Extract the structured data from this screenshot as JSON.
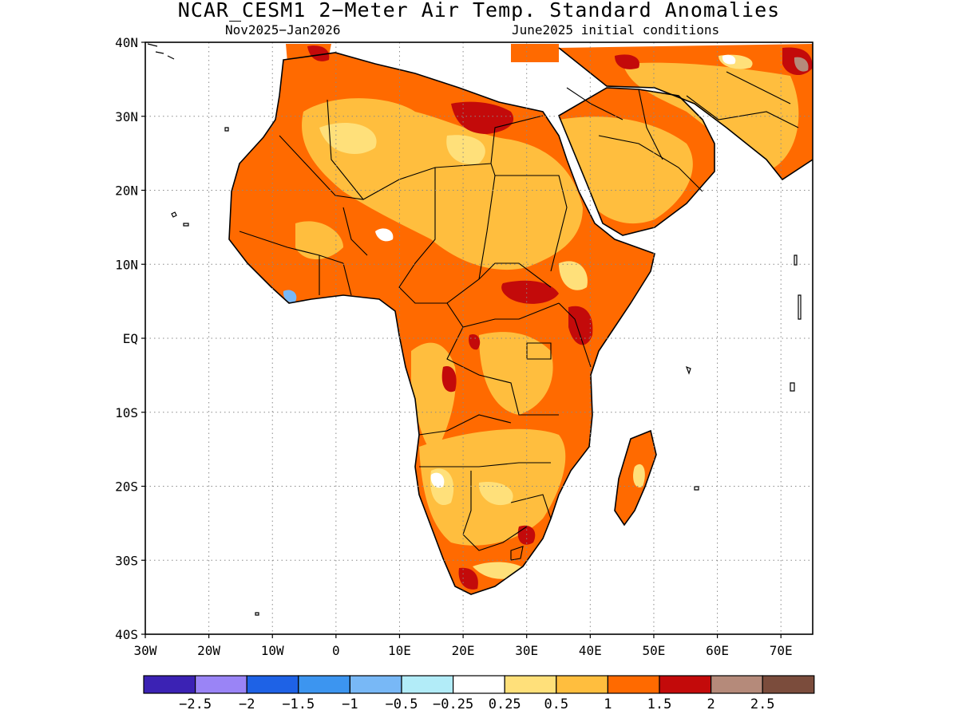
{
  "header": {
    "title": "NCAR_CESM1 2−Meter Air Temp. Standard Anomalies",
    "period": "Nov2025−Jan2026",
    "initial_conditions": "June2025 initial conditions"
  },
  "axes": {
    "x_ticks": [
      "30W",
      "20W",
      "10W",
      "0",
      "10E",
      "20E",
      "30E",
      "40E",
      "50E",
      "60E",
      "70E"
    ],
    "y_ticks": [
      "40N",
      "30N",
      "20N",
      "10N",
      "EQ",
      "10S",
      "20S",
      "30S",
      "40S"
    ],
    "lon_range": [
      -30,
      75
    ],
    "lat_range": [
      -40,
      40
    ]
  },
  "legend": {
    "colors": [
      "#3b22b4",
      "#9a84f6",
      "#1e62e6",
      "#3c95f0",
      "#78b8f6",
      "#b2ecf8",
      "#ffffff",
      "#ffe07a",
      "#ffbe3e",
      "#ff6a00",
      "#c30a0a",
      "#b58a7a",
      "#7b4c3c"
    ],
    "labels": [
      "−2.5",
      "−2",
      "−1.5",
      "−1",
      "−0.5",
      "−0.25",
      "0.25",
      "0.5",
      "1",
      "1.5",
      "2",
      "2.5"
    ]
  },
  "map_colors": {
    "land_base": "#ff6a00",
    "light_orange": "#ffbe3e",
    "yellow": "#ffe07a",
    "dark_red": "#c30a0a",
    "brown": "#b58a7a",
    "blue": "#78b8f6",
    "outline": "#000000"
  }
}
